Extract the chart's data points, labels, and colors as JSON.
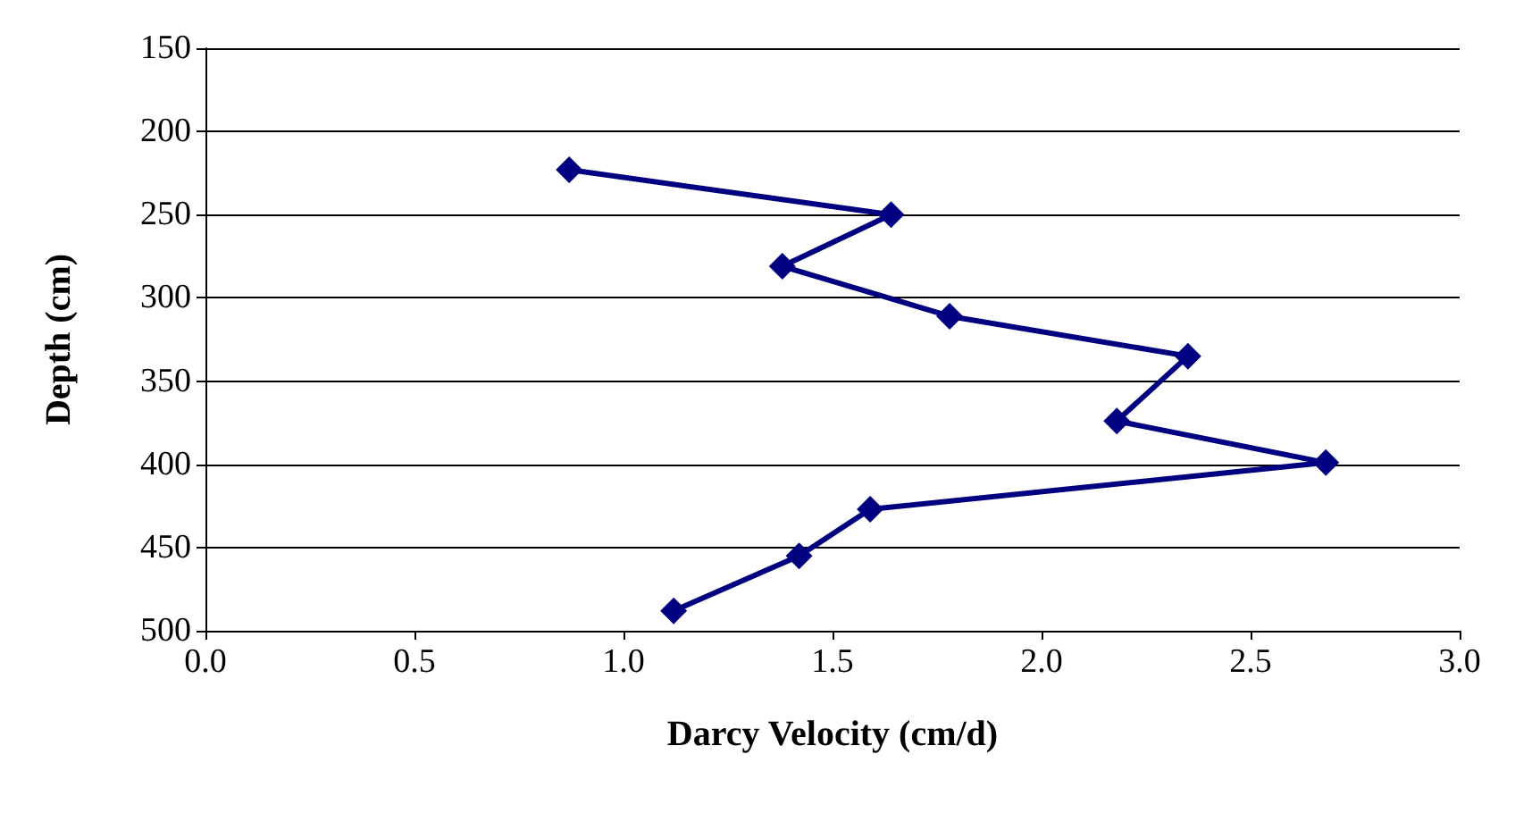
{
  "chart_data": {
    "type": "line",
    "xlabel": "Darcy Velocity (cm/d)",
    "ylabel": "Depth (cm)",
    "x": [
      0.87,
      1.64,
      1.38,
      1.78,
      2.35,
      2.18,
      2.68,
      1.59,
      1.42,
      1.12
    ],
    "series": [
      {
        "color": "#000080",
        "values": [
          223,
          250,
          281,
          311,
          335,
          374,
          399,
          427,
          455,
          488
        ]
      }
    ],
    "xlim": [
      0,
      3
    ],
    "xticks": [
      {
        "value": 0,
        "label": "0.0"
      },
      {
        "value": 0.5,
        "label": "0.5"
      },
      {
        "value": 1,
        "label": "1.0"
      },
      {
        "value": 1.5,
        "label": "1.5"
      },
      {
        "value": 2,
        "label": "2.0"
      },
      {
        "value": 2.5,
        "label": "2.5"
      },
      {
        "value": 3,
        "label": "3.0"
      }
    ],
    "ylim": [
      500,
      150
    ],
    "yticks": [
      150,
      200,
      250,
      300,
      350,
      400,
      450,
      500
    ],
    "grid": "y",
    "marker": "diamond",
    "line_style": "solid"
  }
}
